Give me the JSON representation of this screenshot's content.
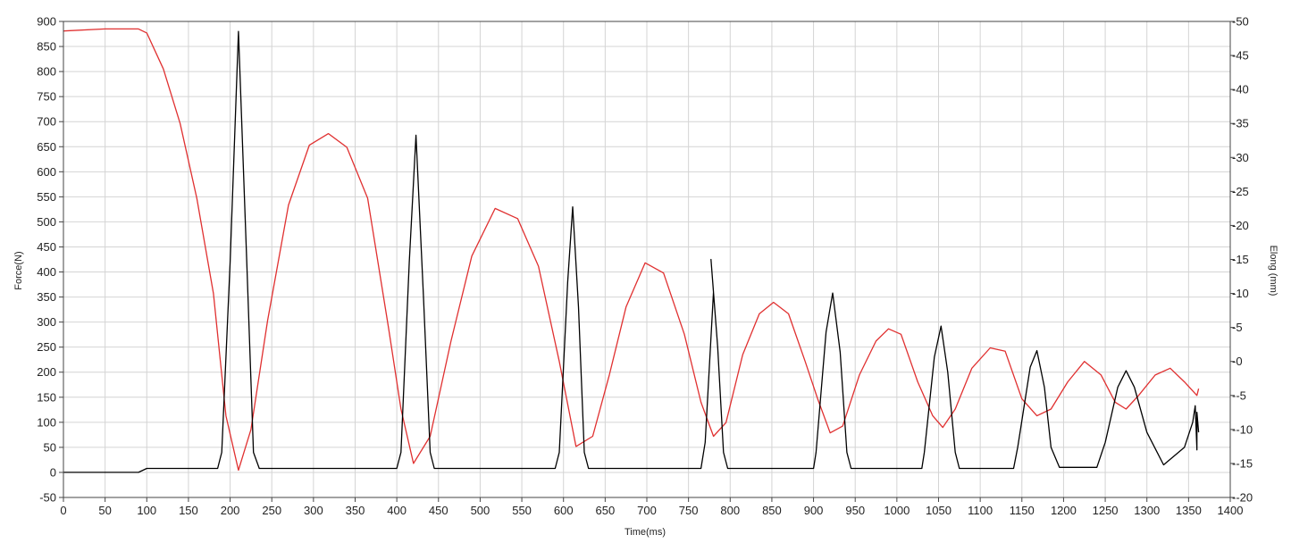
{
  "chart_data": {
    "type": "line",
    "title": "",
    "xlabel": "Time(ms)",
    "ylabel": "Force(N)",
    "y2label": "Elong (mm)",
    "xlim": [
      0,
      1400
    ],
    "ylim": [
      -50,
      900
    ],
    "y2lim": [
      -20,
      50
    ],
    "x_ticks": [
      0,
      50,
      100,
      150,
      200,
      250,
      300,
      350,
      400,
      450,
      500,
      550,
      600,
      650,
      700,
      750,
      800,
      850,
      900,
      950,
      1000,
      1050,
      1100,
      1150,
      1200,
      1250,
      1300,
      1350,
      1400
    ],
    "y_ticks": [
      -50,
      0,
      50,
      100,
      150,
      200,
      250,
      300,
      350,
      400,
      450,
      500,
      550,
      600,
      650,
      700,
      750,
      800,
      850,
      900
    ],
    "y2_ticks": [
      -20,
      -15,
      -10,
      -5,
      0,
      5,
      10,
      15,
      20,
      25,
      30,
      35,
      40,
      45,
      50
    ],
    "grid": true,
    "colors": {
      "force": "#000000",
      "elong": "#e03030",
      "grid": "#d4d4d4",
      "axis": "#444444"
    },
    "series": [
      {
        "axis": "left",
        "color": "#000000",
        "x": [
          0,
          90,
          100,
          185,
          190,
          200,
          210,
          220,
          228,
          235,
          400,
          405,
          415,
          423,
          432,
          440,
          445,
          590,
          595,
          605,
          611,
          618,
          625,
          630,
          765,
          770,
          780,
          777,
          785,
          792,
          797,
          900,
          903,
          915,
          923,
          932,
          940,
          945,
          1030,
          1033,
          1045,
          1053,
          1061,
          1070,
          1075,
          1140,
          1145,
          1160,
          1168,
          1177,
          1185,
          1195,
          1240,
          1250,
          1265,
          1275,
          1285,
          1300,
          1320,
          1345,
          1355,
          1358,
          1360,
          1360,
          1362
        ],
        "y": [
          0,
          0,
          8,
          8,
          40,
          420,
          880,
          420,
          40,
          8,
          8,
          40,
          420,
          673,
          350,
          40,
          8,
          8,
          40,
          380,
          530,
          330,
          40,
          8,
          8,
          60,
          360,
          425,
          250,
          40,
          8,
          8,
          40,
          280,
          358,
          240,
          40,
          8,
          8,
          40,
          230,
          292,
          200,
          40,
          8,
          8,
          50,
          210,
          243,
          170,
          50,
          10,
          10,
          60,
          170,
          203,
          170,
          80,
          15,
          50,
          100,
          133,
          45,
          120,
          80
        ]
      },
      {
        "axis": "right",
        "color": "#e03030",
        "x": [
          0,
          50,
          90,
          100,
          120,
          140,
          160,
          180,
          195,
          210,
          225,
          245,
          270,
          295,
          318,
          340,
          365,
          390,
          405,
          420,
          440,
          465,
          490,
          518,
          545,
          570,
          595,
          615,
          635,
          655,
          675,
          698,
          720,
          745,
          765,
          780,
          795,
          815,
          835,
          852,
          870,
          890,
          905,
          920,
          935,
          955,
          975,
          990,
          1005,
          1025,
          1043,
          1055,
          1070,
          1090,
          1112,
          1130,
          1150,
          1168,
          1185,
          1205,
          1225,
          1245,
          1262,
          1275,
          1290,
          1310,
          1328,
          1345,
          1360,
          1362
        ],
        "y": [
          48.6,
          48.9,
          48.9,
          48.3,
          43,
          35,
          24,
          10,
          -8,
          -16,
          -10,
          6,
          23,
          31.8,
          33.5,
          31.5,
          24,
          5,
          -7,
          -15,
          -11,
          3,
          15.5,
          22.5,
          21,
          14,
          0,
          -12.5,
          -11,
          -2,
          8,
          14.5,
          13,
          4,
          -6,
          -11,
          -9,
          1,
          7,
          8.7,
          7,
          0,
          -5.5,
          -10.5,
          -9.5,
          -2,
          3,
          4.8,
          4,
          -3,
          -8,
          -9.7,
          -7,
          -1,
          2,
          1.5,
          -5.5,
          -8,
          -7,
          -3,
          0,
          -2,
          -6,
          -7,
          -5,
          -2,
          -1,
          -3,
          -5,
          -4
        ]
      }
    ]
  }
}
